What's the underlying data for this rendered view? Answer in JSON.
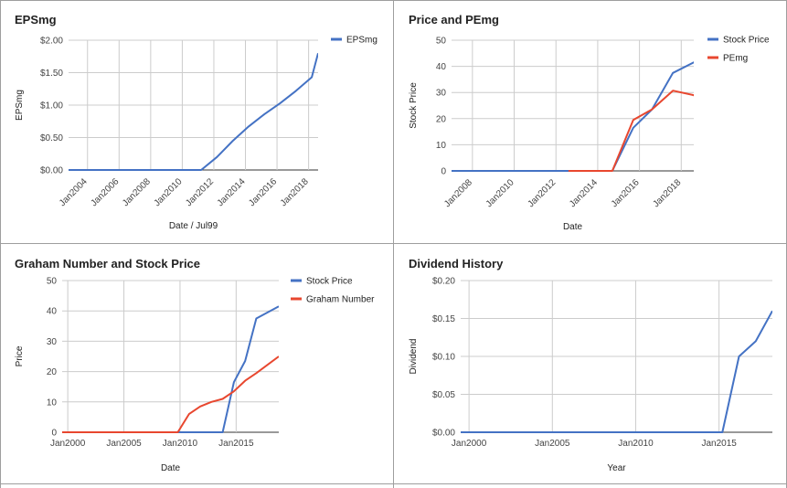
{
  "colors": {
    "blue": "#4472c4",
    "red": "#e8472f",
    "grid": "#cccccc",
    "divider": "#9e9e9e"
  },
  "chart_data": [
    {
      "type": "line",
      "title": "EPSmg",
      "xlabel": "Date / Jul99",
      "ylabel": "EPSmg",
      "x_axis": "date",
      "xlim": [
        2002.8,
        2018.6
      ],
      "ylim": [
        0,
        2
      ],
      "yticks": [
        0,
        0.5,
        1,
        1.5,
        2
      ],
      "ytick_labels": [
        "$0.00",
        "$0.50",
        "$1.00",
        "$1.50",
        "$2.00"
      ],
      "xticks": [
        2004,
        2006,
        2008,
        2010,
        2012,
        2014,
        2016,
        2018
      ],
      "xtick_labels": [
        "Jan2004",
        "Jan2006",
        "Jan2008",
        "Jan2010",
        "Jan2012",
        "Jan2014",
        "Jan2016",
        "Jan2018"
      ],
      "xtick_rotate": true,
      "grid": true,
      "legend": "top-right",
      "series": [
        {
          "name": "EPSmg",
          "color": "#4472c4",
          "x": [
            2002.8,
            2011.2,
            2012.2,
            2013.2,
            2014.2,
            2015.2,
            2016.2,
            2017.2,
            2018.2,
            2018.6
          ],
          "y": [
            0,
            0,
            0.2,
            0.45,
            0.67,
            0.86,
            1.03,
            1.22,
            1.43,
            1.8
          ]
        }
      ]
    },
    {
      "type": "line",
      "title": "Price and PEmg",
      "xlabel": "Date",
      "ylabel": "Stock Price",
      "x_axis": "date",
      "xlim": [
        2007,
        2018.6
      ],
      "ylim": [
        0,
        50
      ],
      "yticks": [
        0,
        10,
        20,
        30,
        40,
        50
      ],
      "ytick_labels": [
        "0",
        "10",
        "20",
        "30",
        "40",
        "50"
      ],
      "xticks": [
        2008,
        2010,
        2012,
        2014,
        2016,
        2018
      ],
      "xtick_labels": [
        "Jan2008",
        "Jan2010",
        "Jan2012",
        "Jan2014",
        "Jan2016",
        "Jan2018"
      ],
      "xtick_rotate": true,
      "grid": true,
      "legend": "top-right",
      "series": [
        {
          "name": "Stock Price",
          "color": "#4472c4",
          "x": [
            2007,
            2014.7,
            2015.7,
            2016.6,
            2017.6,
            2018.6,
            2019.6,
            2020.6
          ],
          "y": [
            0,
            0,
            16.5,
            23.5,
            37.5,
            41.5,
            42,
            42.5
          ]
        },
        {
          "name": "PEmg",
          "color": "#e8472f",
          "x": [
            2012.6,
            2014.7,
            2015.7,
            2016.6,
            2017.6,
            2018.6,
            2019.3
          ],
          "y": [
            0,
            0,
            19.5,
            23.5,
            30.7,
            29,
            23
          ]
        }
      ]
    },
    {
      "type": "line",
      "title": "Graham Number and Stock Price",
      "xlabel": "Date",
      "ylabel": "Price",
      "x_axis": "date",
      "xlim": [
        1999.5,
        2018.8
      ],
      "ylim": [
        0,
        50
      ],
      "yticks": [
        0,
        10,
        20,
        30,
        40,
        50
      ],
      "ytick_labels": [
        "0",
        "10",
        "20",
        "30",
        "40",
        "50"
      ],
      "xticks": [
        2000,
        2005,
        2010,
        2015
      ],
      "xtick_labels": [
        "Jan2000",
        "Jan2005",
        "Jan2010",
        "Jan2015"
      ],
      "xtick_rotate": false,
      "grid": true,
      "legend": "top-right",
      "series": [
        {
          "name": "Stock Price",
          "color": "#4472c4",
          "x": [
            1999.5,
            2013.8,
            2014.8,
            2015.8,
            2016.8,
            2018.8
          ],
          "y": [
            0,
            0,
            16.5,
            23.5,
            37.5,
            41.5
          ]
        },
        {
          "name": "Graham Number",
          "color": "#e8472f",
          "x": [
            1999.5,
            2009.8,
            2010.8,
            2011.8,
            2012.8,
            2013.8,
            2014.8,
            2015.8,
            2016.8,
            2018.8
          ],
          "y": [
            0,
            0,
            6,
            8.5,
            10,
            11,
            13.5,
            17,
            19.5,
            25
          ]
        }
      ]
    },
    {
      "type": "line",
      "title": "Dividend History",
      "xlabel": "Year",
      "ylabel": "Dividend",
      "x_axis": "date",
      "xlim": [
        1999.5,
        2018.2
      ],
      "ylim": [
        0,
        0.2
      ],
      "yticks": [
        0,
        0.05,
        0.1,
        0.15,
        0.2
      ],
      "ytick_labels": [
        "$0.00",
        "$0.05",
        "$0.10",
        "$0.15",
        "$0.20"
      ],
      "xticks": [
        2000,
        2005,
        2010,
        2015
      ],
      "xtick_labels": [
        "Jan2000",
        "Jan2005",
        "Jan2010",
        "Jan2015"
      ],
      "xtick_rotate": false,
      "grid": true,
      "legend": "none",
      "series": [
        {
          "color": "#4472c4",
          "x": [
            1999.5,
            2015.2,
            2016.2,
            2017.2,
            2018.2
          ],
          "y": [
            0,
            0,
            0.1,
            0.12,
            0.16
          ]
        }
      ]
    }
  ]
}
